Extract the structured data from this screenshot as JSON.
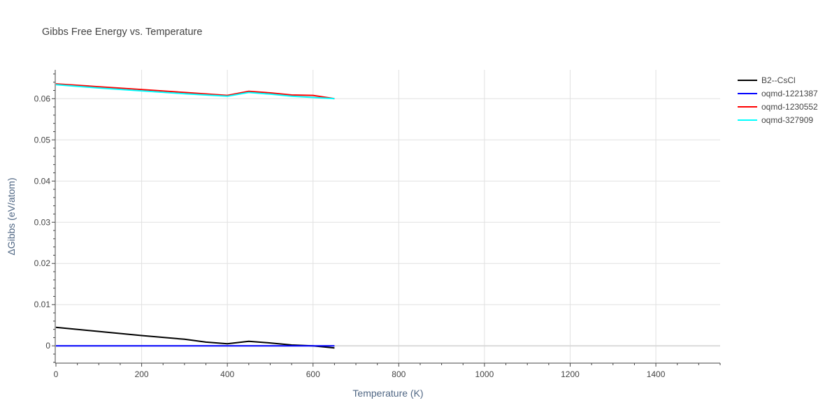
{
  "chart_data": {
    "type": "line",
    "title": "Gibbs Free Energy vs. Temperature",
    "xlabel": "Temperature (K)",
    "ylabel": "ΔGibbs (eV/atom)",
    "xlim": [
      0,
      1550
    ],
    "ylim": [
      -0.0042,
      0.067
    ],
    "xticks": [
      0,
      200,
      400,
      600,
      800,
      1000,
      1200,
      1400
    ],
    "xtick_labels": [
      "0",
      "200",
      "400",
      "600",
      "800",
      "1000",
      "1200",
      "1400"
    ],
    "yticks": [
      0,
      0.01,
      0.02,
      0.03,
      0.04,
      0.05,
      0.06
    ],
    "ytick_labels": [
      "0",
      "0.01",
      "0.02",
      "0.03",
      "0.04",
      "0.05",
      "0.06"
    ],
    "grid": true,
    "legend_position": "top-right",
    "series": [
      {
        "name": "B2--CsCl",
        "color": "#000000",
        "x": [
          0,
          100,
          200,
          300,
          350,
          400,
          450,
          500,
          550,
          600,
          650
        ],
        "y": [
          0.0045,
          0.0035,
          0.0025,
          0.0016,
          0.0009,
          0.0005,
          0.0011,
          0.0007,
          0.0002,
          0.0,
          -0.0005
        ]
      },
      {
        "name": "oqmd-1221387",
        "color": "#0000ff",
        "x": [
          0,
          100,
          200,
          300,
          400,
          500,
          600,
          650
        ],
        "y": [
          0,
          0,
          0,
          0,
          0,
          0,
          0,
          0
        ]
      },
      {
        "name": "oqmd-1230552",
        "color": "#ff0000",
        "x": [
          0,
          100,
          200,
          300,
          400,
          450,
          500,
          550,
          600,
          650
        ],
        "y": [
          0.0636,
          0.0629,
          0.0622,
          0.0615,
          0.0608,
          0.0618,
          0.0614,
          0.0609,
          0.0608,
          0.06
        ]
      },
      {
        "name": "oqmd-327909",
        "color": "#00ffff",
        "x": [
          0,
          100,
          200,
          300,
          400,
          450,
          500,
          550,
          600,
          650
        ],
        "y": [
          0.0634,
          0.0626,
          0.0619,
          0.0612,
          0.0606,
          0.0615,
          0.0611,
          0.0606,
          0.0603,
          0.06
        ]
      }
    ]
  }
}
